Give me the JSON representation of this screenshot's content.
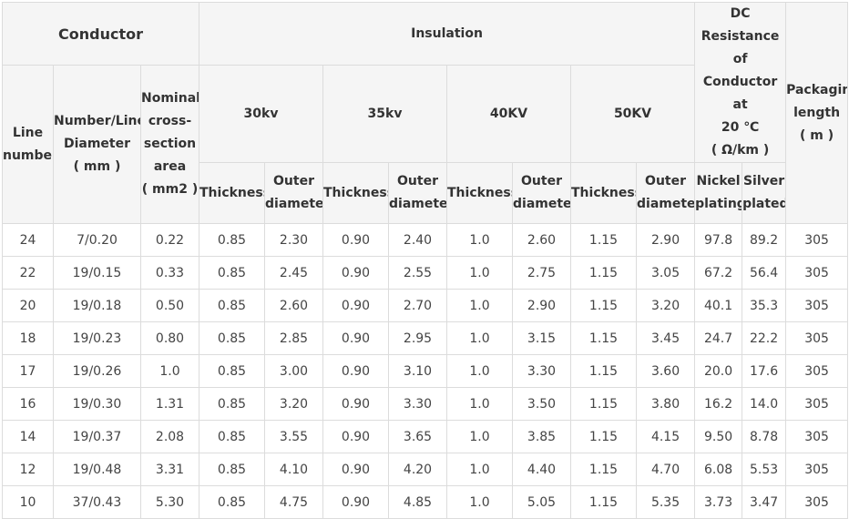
{
  "table": {
    "headers": {
      "conductor": "Conductor",
      "insulation": "Insulation",
      "dc_resistance": [
        "DC",
        "Resistance of",
        "Conductor at",
        "20 ℃",
        "( Ω/km )"
      ],
      "packaging_length": [
        "Packaging",
        "length",
        "( m )"
      ],
      "line_number": [
        "Line",
        "number"
      ],
      "number_line_diameter": [
        "Number/Line",
        "Diameter",
        "( mm )"
      ],
      "nominal_area": [
        "Nominal",
        "cross-",
        "section",
        "area",
        "( mm2 )"
      ],
      "kv30": "30kv",
      "kv35": "35kv",
      "kv40": "40KV",
      "kv50": "50KV",
      "thickness": "Thickness",
      "outer_diameter": [
        "Outer",
        "diameter"
      ],
      "nickel_plating": [
        "Nickel",
        "plating"
      ],
      "silver_plated": [
        "Silver",
        "plated"
      ]
    },
    "rows": [
      [
        "24",
        "7/0.20",
        "0.22",
        "0.85",
        "2.30",
        "0.90",
        "2.40",
        "1.0",
        "2.60",
        "1.15",
        "2.90",
        "97.8",
        "89.2",
        "305"
      ],
      [
        "22",
        "19/0.15",
        "0.33",
        "0.85",
        "2.45",
        "0.90",
        "2.55",
        "1.0",
        "2.75",
        "1.15",
        "3.05",
        "67.2",
        "56.4",
        "305"
      ],
      [
        "20",
        "19/0.18",
        "0.50",
        "0.85",
        "2.60",
        "0.90",
        "2.70",
        "1.0",
        "2.90",
        "1.15",
        "3.20",
        "40.1",
        "35.3",
        "305"
      ],
      [
        "18",
        "19/0.23",
        "0.80",
        "0.85",
        "2.85",
        "0.90",
        "2.95",
        "1.0",
        "3.15",
        "1.15",
        "3.45",
        "24.7",
        "22.2",
        "305"
      ],
      [
        "17",
        "19/0.26",
        "1.0",
        "0.85",
        "3.00",
        "0.90",
        "3.10",
        "1.0",
        "3.30",
        "1.15",
        "3.60",
        "20.0",
        "17.6",
        "305"
      ],
      [
        "16",
        "19/0.30",
        "1.31",
        "0.85",
        "3.20",
        "0.90",
        "3.30",
        "1.0",
        "3.50",
        "1.15",
        "3.80",
        "16.2",
        "14.0",
        "305"
      ],
      [
        "14",
        "19/0.37",
        "2.08",
        "0.85",
        "3.55",
        "0.90",
        "3.65",
        "1.0",
        "3.85",
        "1.15",
        "4.15",
        "9.50",
        "8.78",
        "305"
      ],
      [
        "12",
        "19/0.48",
        "3.31",
        "0.85",
        "4.10",
        "0.90",
        "4.20",
        "1.0",
        "4.40",
        "1.15",
        "4.70",
        "6.08",
        "5.53",
        "305"
      ],
      [
        "10",
        "37/0.43",
        "5.30",
        "0.85",
        "4.75",
        "0.90",
        "4.85",
        "1.0",
        "5.05",
        "1.15",
        "5.35",
        "3.73",
        "3.47",
        "305"
      ]
    ]
  },
  "colors": {
    "header_bg": "#f5f5f5",
    "border": "#dcdcdc",
    "text": "#333333"
  }
}
